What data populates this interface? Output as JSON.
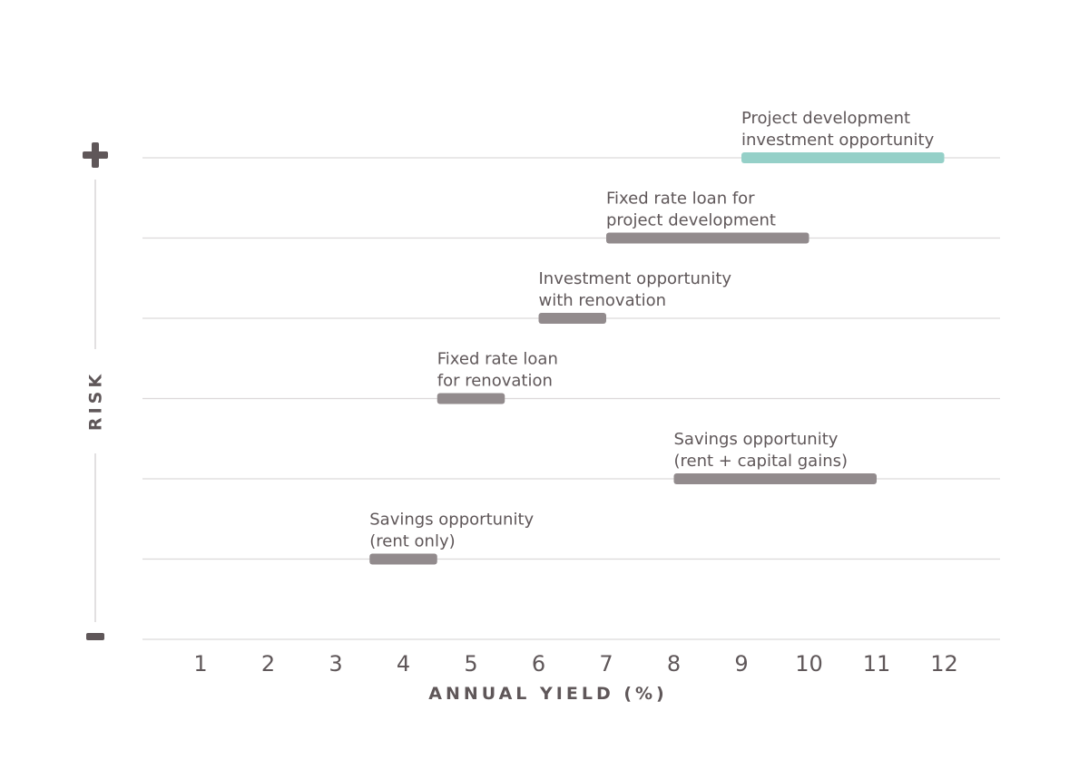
{
  "chart_data": {
    "type": "range-bar",
    "title": "",
    "xlabel": "ANNUAL YIELD (%)",
    "ylabel": "RISK",
    "risk_high_symbol": "+",
    "risk_low_symbol": "−",
    "xlim": [
      0.2,
      12.8
    ],
    "x_ticks": [
      1,
      2,
      3,
      4,
      5,
      6,
      7,
      8,
      9,
      10,
      11,
      12
    ],
    "grid": true,
    "risk_levels": 7,
    "bars": [
      {
        "label": [
          "Savings opportunity",
          "(rent only)"
        ],
        "x_start": 3.5,
        "x_end": 4.5,
        "risk_level": 1,
        "color": "#928b8d"
      },
      {
        "label": [
          "Savings opportunity",
          "(rent + capital gains)"
        ],
        "x_start": 8,
        "x_end": 11,
        "risk_level": 2,
        "color": "#928b8d"
      },
      {
        "label": [
          "Fixed rate loan",
          "for renovation"
        ],
        "x_start": 4.5,
        "x_end": 5.5,
        "risk_level": 3,
        "color": "#928b8d"
      },
      {
        "label": [
          "Investment opportunity",
          "with renovation"
        ],
        "x_start": 6,
        "x_end": 7,
        "risk_level": 4,
        "color": "#928b8d"
      },
      {
        "label": [
          "Fixed rate loan for",
          "project development"
        ],
        "x_start": 7,
        "x_end": 10,
        "risk_level": 5,
        "color": "#928b8d"
      },
      {
        "label": [
          "Project development",
          "investment opportunity"
        ],
        "x_start": 9,
        "x_end": 12,
        "risk_level": 6,
        "color": "#95d0c8"
      }
    ]
  }
}
